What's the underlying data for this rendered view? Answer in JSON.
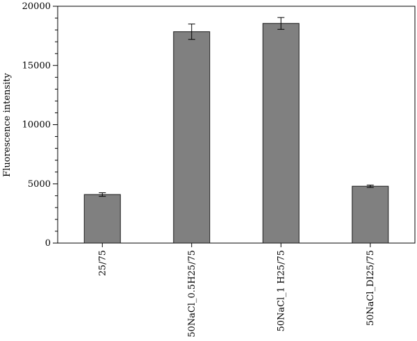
{
  "chart_data": {
    "type": "bar",
    "title": "",
    "xlabel": "",
    "ylabel": "Fluorescence intensity",
    "ylim": [
      0,
      20000
    ],
    "yticks": [
      0,
      5000,
      10000,
      15000,
      20000
    ],
    "grid": false,
    "legend": "none",
    "categories": [
      "25/75",
      "50NaCl_0.5H25/75",
      "50NaCl_1 H25/75",
      "50NaCl_DI25/75"
    ],
    "values": [
      4100,
      17850,
      18550,
      4800
    ],
    "errors": [
      150,
      650,
      500,
      100
    ],
    "colors": {
      "bar": "#808080",
      "bar_edge": "#1a1a1a",
      "axis": "#000000"
    }
  }
}
